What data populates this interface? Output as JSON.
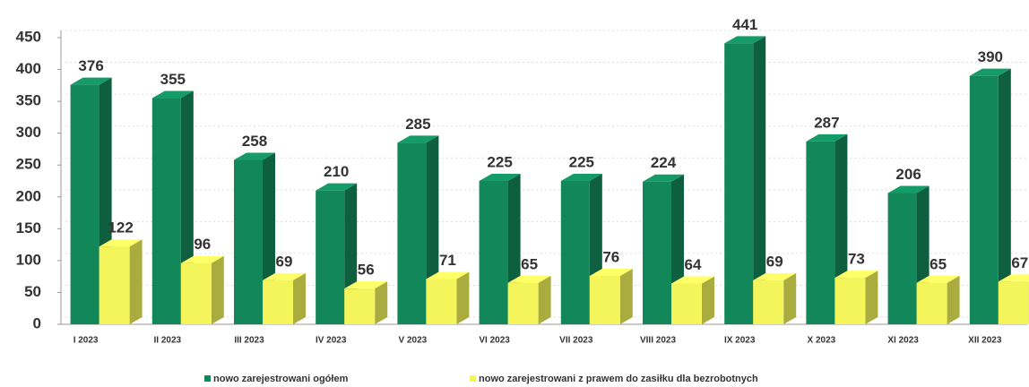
{
  "chart_data": {
    "type": "bar3d",
    "categories": [
      "I 2023",
      "II 2023",
      "III 2023",
      "IV 2023",
      "V 2023",
      "VI 2023",
      "VII 2023",
      "VIII 2023",
      "IX 2023",
      "X 2023",
      "XI 2023",
      "XII 2023"
    ],
    "series": [
      {
        "name": "nowo zarejestrowani ogółem",
        "color": "#12875a",
        "values": [
          376,
          355,
          258,
          210,
          285,
          225,
          225,
          224,
          441,
          287,
          206,
          390
        ]
      },
      {
        "name": "nowo zarejestrowani z prawem do zasiłku dla bezrobotnych",
        "color": "#f4f55a",
        "values": [
          122,
          96,
          69,
          56,
          71,
          65,
          76,
          64,
          69,
          73,
          65,
          67
        ]
      }
    ],
    "ylim": [
      0,
      450
    ],
    "yticks": [
      0,
      50,
      100,
      150,
      200,
      250,
      300,
      350,
      400,
      450
    ],
    "grid": true
  }
}
